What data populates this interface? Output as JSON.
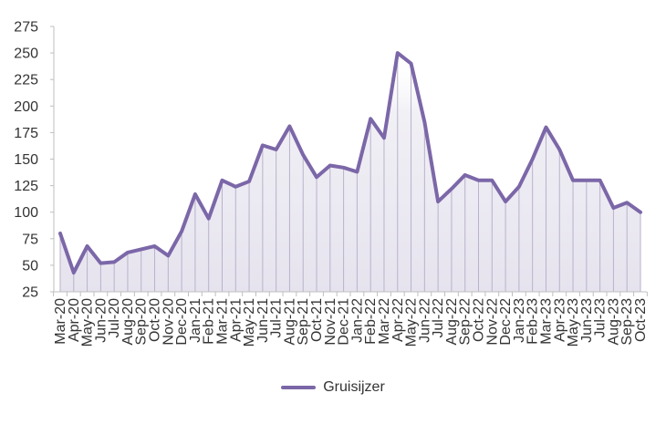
{
  "chart_data": {
    "type": "area",
    "title": "",
    "xlabel": "",
    "ylabel": "",
    "ylim": [
      25,
      275
    ],
    "yticks": [
      25,
      50,
      75,
      100,
      125,
      150,
      175,
      200,
      225,
      250,
      275
    ],
    "grid": false,
    "legend_position": "bottom",
    "categories": [
      "Mar-20",
      "Apr-20",
      "May-20",
      "Jun-20",
      "Jul-20",
      "Aug-20",
      "Sep-20",
      "Oct-20",
      "Nov-20",
      "Dec-20",
      "Jan-21",
      "Feb-21",
      "Mar-21",
      "Apr-21",
      "May-21",
      "Jun-21",
      "Jul-21",
      "Aug-21",
      "Sep-21",
      "Oct-21",
      "Nov-21",
      "Dec-21",
      "Jan-22",
      "Feb-22",
      "Mar-22",
      "Apr-22",
      "May-22",
      "Jun-22",
      "Jul-22",
      "Aug-22",
      "Sep-22",
      "Oct-22",
      "Nov-22",
      "Dec-22",
      "Jan-23",
      "Feb-23",
      "Mar-23",
      "Apr-23",
      "May-23",
      "Jun-23",
      "Jul-23",
      "Aug-23",
      "Sep-23",
      "Oct-23"
    ],
    "series": [
      {
        "name": "Gruisijzer",
        "color": "#7b67a8",
        "values": [
          80,
          43,
          68,
          52,
          53,
          62,
          65,
          68,
          59,
          82,
          117,
          94,
          130,
          124,
          129,
          163,
          159,
          181,
          154,
          133,
          144,
          142,
          138,
          188,
          170,
          250,
          240,
          185,
          110,
          122,
          135,
          130,
          130,
          110,
          124,
          150,
          180,
          159,
          130,
          130,
          130,
          104,
          109,
          100
        ]
      }
    ]
  },
  "legend": {
    "label": "Gruisijzer"
  }
}
